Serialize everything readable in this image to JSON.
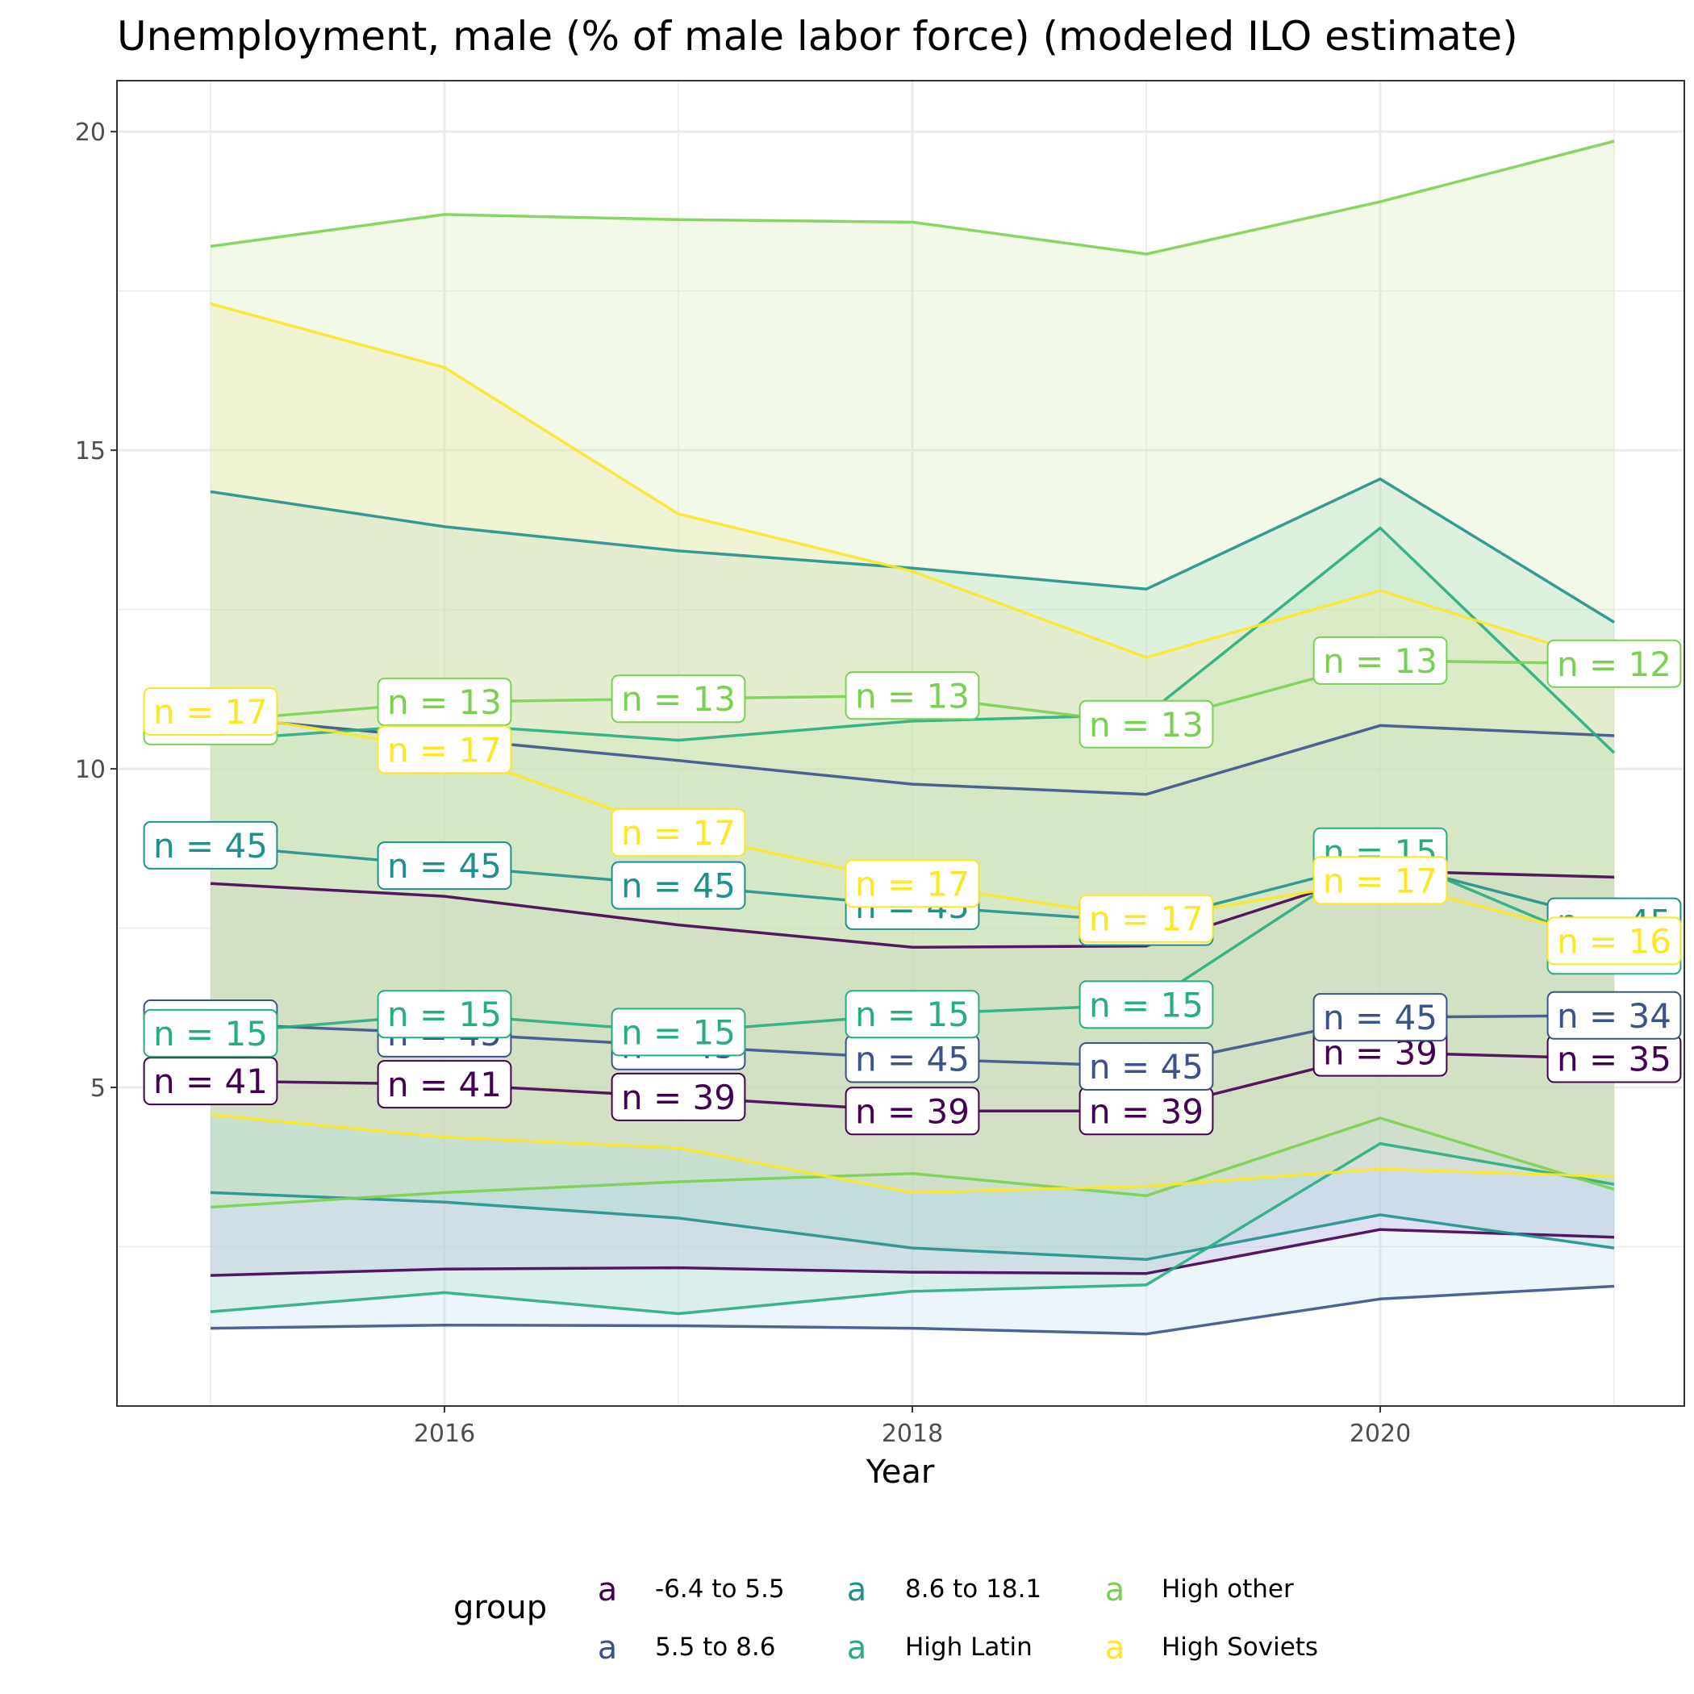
{
  "chart_data": {
    "type": "area",
    "title": "Unemployment, male (% of male labor force) (modeled ILO estimate)",
    "xlabel": "Year",
    "ylabel": "",
    "xlim": [
      2014.6,
      2021.3
    ],
    "ylim": [
      0,
      20.8
    ],
    "x_ticks": [
      2016,
      2018,
      2020
    ],
    "y_ticks": [
      5,
      10,
      15,
      20
    ],
    "grid": true,
    "legend": {
      "title": "group",
      "position": "bottom",
      "key_glyph": "a",
      "entries": [
        "-6.4 to 5.5",
        "5.5 to 8.6",
        "8.6 to 18.1",
        "High Latin",
        "High other",
        "High Soviets"
      ]
    },
    "series": [
      {
        "name": "-6.4 to 5.5",
        "color": "#440154",
        "x": [
          2015,
          2016,
          2017,
          2018,
          2019,
          2020,
          2021
        ],
        "upper": [
          null,
          null,
          null,
          null,
          null,
          null,
          null
        ],
        "mean": [
          5.1,
          5.05,
          4.85,
          4.63,
          4.63,
          5.55,
          5.45
        ],
        "lower": [
          2.05,
          2.15,
          2.17,
          2.1,
          2.08,
          2.77,
          2.65
        ],
        "band_upper": [
          8.2,
          8.0,
          7.55,
          7.2,
          7.22,
          8.4,
          8.3
        ],
        "n": [
          "n = 41",
          "n = 41",
          "n = 39",
          "n = 39",
          "n = 39",
          "n = 39",
          "n = 35"
        ]
      },
      {
        "name": "5.5 to 8.6",
        "color": "#3b528b",
        "x": [
          2015,
          2016,
          2017,
          2018,
          2019,
          2020,
          2021
        ],
        "mean": [
          6.0,
          5.85,
          5.65,
          5.45,
          5.33,
          6.1,
          6.13
        ],
        "lower": [
          1.22,
          1.27,
          1.26,
          1.22,
          1.13,
          1.68,
          1.88
        ],
        "band_upper": [
          10.82,
          10.48,
          10.13,
          9.76,
          9.6,
          10.68,
          10.52
        ],
        "n": [
          "n = 45",
          "n = 45",
          "n = 45",
          "n = 45",
          "n = 45",
          "n = 45",
          "n = 34"
        ]
      },
      {
        "name": "8.6 to 18.1",
        "color": "#21908d",
        "x": [
          2015,
          2016,
          2017,
          2018,
          2019,
          2020,
          2021
        ],
        "mean": [
          8.8,
          8.48,
          8.17,
          7.85,
          7.6,
          8.55,
          7.6
        ],
        "lower": [
          3.35,
          3.2,
          2.95,
          2.48,
          2.3,
          3.0,
          2.48
        ],
        "band_upper": [
          14.35,
          13.8,
          13.42,
          13.15,
          12.82,
          14.55,
          12.3
        ],
        "n": [
          "n = 45",
          "n = 45",
          "n = 45",
          "n = 45",
          "n = 45",
          "n = 45",
          "n = 45"
        ]
      },
      {
        "name": "High Latin",
        "color": "#27ad81",
        "x": [
          2015,
          2016,
          2017,
          2018,
          2019,
          2020,
          2021
        ],
        "mean": [
          5.85,
          6.15,
          5.87,
          6.15,
          6.3,
          8.7,
          7.15
        ],
        "lower": [
          1.48,
          1.78,
          1.45,
          1.8,
          1.9,
          4.12,
          3.48
        ],
        "band_upper": [
          10.45,
          10.7,
          10.45,
          10.75,
          10.85,
          13.78,
          10.25
        ],
        "n": [
          "n = 15",
          "n = 15",
          "n = 15",
          "n = 15",
          "n = 15",
          "n = 15",
          "n = 14"
        ]
      },
      {
        "name": "High other",
        "color": "#7ad151",
        "x": [
          2015,
          2016,
          2017,
          2018,
          2019,
          2020,
          2021
        ],
        "mean": [
          10.75,
          11.05,
          11.1,
          11.15,
          10.7,
          11.7,
          11.65
        ],
        "lower": [
          3.12,
          3.35,
          3.52,
          3.65,
          3.3,
          4.52,
          3.4
        ],
        "band_upper": [
          18.2,
          18.7,
          18.62,
          18.58,
          18.08,
          18.9,
          19.85
        ],
        "n": [
          "n = 13",
          "n = 13",
          "n = 13",
          "n = 13",
          "n = 13",
          "n = 13",
          "n = 12"
        ]
      },
      {
        "name": "High Soviets",
        "color": "#fde725",
        "x": [
          2015,
          2016,
          2017,
          2018,
          2019,
          2020,
          2021
        ],
        "mean": [
          10.9,
          10.3,
          9.0,
          8.2,
          7.65,
          8.25,
          7.3
        ],
        "lower": [
          4.57,
          4.22,
          4.05,
          3.35,
          3.45,
          3.72,
          3.6
        ],
        "band_upper": [
          17.3,
          16.3,
          14.0,
          13.1,
          11.75,
          12.8,
          11.65
        ],
        "n": [
          "n = 17",
          "n = 17",
          "n = 17",
          "n = 17",
          "n = 17",
          "n = 17",
          "n = 16"
        ]
      }
    ]
  }
}
